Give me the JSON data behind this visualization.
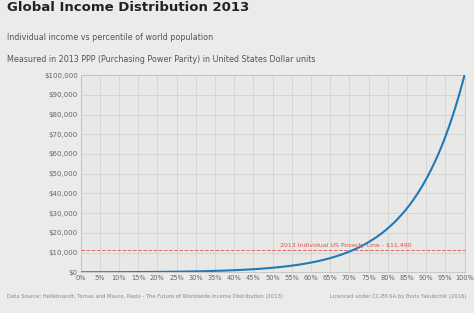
{
  "title": "Global Income Distribution 2013",
  "subtitle1": "Individual income vs percentile of world population",
  "subtitle2": "Measured in 2013 PPP (Purchasing Power Parity) in United States Dollar units",
  "footer_left": "Data Source: Hellebrandt, Tomas and Mauro, Paolo - The Future of Worldwide Income Distribution (2013)",
  "footer_right": "Licenced under CC-BY-SA by Boris Yakubchik (2016)",
  "poverty_line_value": 11490,
  "poverty_line_label": "2013 Individual US Poverty Line - $11,490",
  "ylim_max": 100000,
  "ylim_min": 0,
  "bg_color": "#ebebea",
  "plot_bg_color": "#e8e8e7",
  "line_color": "#2279b5",
  "poverty_line_color": "#d9534f",
  "grid_color": "#c8c8c8",
  "title_color": "#222222",
  "subtitle_color": "#555555",
  "footer_color": "#888888",
  "axis_label_color": "#666666"
}
